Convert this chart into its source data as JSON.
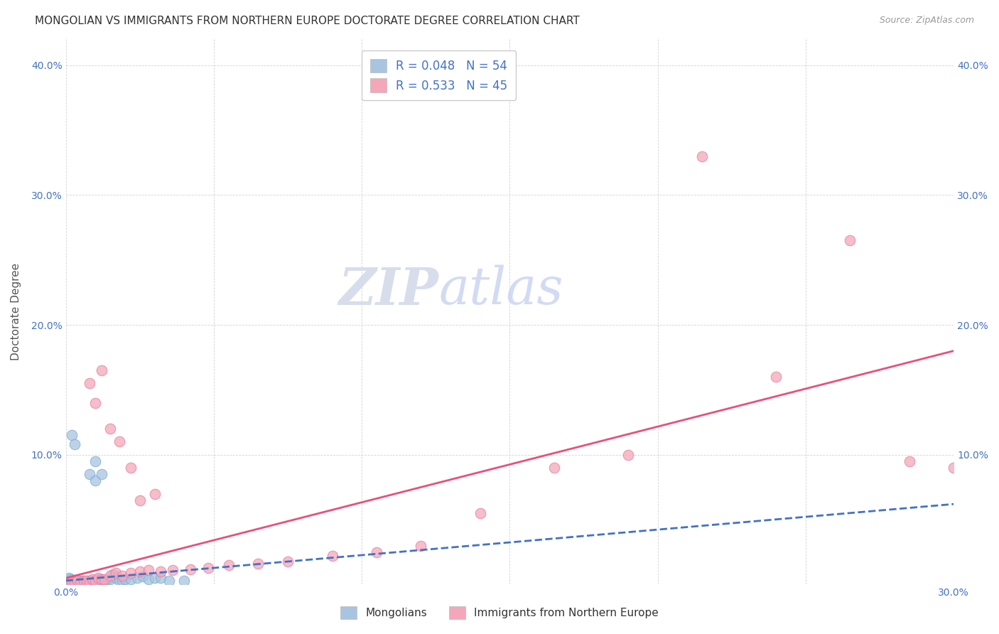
{
  "title": "MONGOLIAN VS IMMIGRANTS FROM NORTHERN EUROPE DOCTORATE DEGREE CORRELATION CHART",
  "source": "Source: ZipAtlas.com",
  "ylabel": "Doctorate Degree",
  "xlim": [
    0.0,
    0.3
  ],
  "ylim": [
    0.0,
    0.42
  ],
  "xticks": [
    0.0,
    0.05,
    0.1,
    0.15,
    0.2,
    0.25,
    0.3
  ],
  "yticks": [
    0.0,
    0.1,
    0.2,
    0.3,
    0.4
  ],
  "ytick_labels": [
    "",
    "10.0%",
    "20.0%",
    "30.0%",
    "40.0%"
  ],
  "xtick_labels": [
    "0.0%",
    "",
    "",
    "",
    "",
    "",
    "30.0%"
  ],
  "mongolian_R": 0.048,
  "mongolian_N": 54,
  "immigrant_R": 0.533,
  "immigrant_N": 45,
  "mongolian_color": "#a8c4e0",
  "mongolian_edge_color": "#7aafd4",
  "mongolian_line_color": "#4472c4",
  "immigrant_color": "#f4a7b9",
  "immigrant_edge_color": "#e87fa0",
  "immigrant_line_color": "#e8507a",
  "background_color": "#ffffff",
  "title_fontsize": 11,
  "axis_label_fontsize": 11,
  "tick_fontsize": 10,
  "legend_fontsize": 12,
  "watermark_zip_color": "#d0d8e8",
  "watermark_atlas_color": "#c8d8f0",
  "mongolian_x": [
    0.001,
    0.001,
    0.001,
    0.001,
    0.001,
    0.002,
    0.002,
    0.002,
    0.002,
    0.002,
    0.002,
    0.003,
    0.003,
    0.003,
    0.003,
    0.003,
    0.004,
    0.004,
    0.004,
    0.004,
    0.005,
    0.005,
    0.005,
    0.005,
    0.006,
    0.006,
    0.006,
    0.007,
    0.007,
    0.007,
    0.008,
    0.008,
    0.009,
    0.009,
    0.01,
    0.01,
    0.011,
    0.012,
    0.013,
    0.014,
    0.015,
    0.016,
    0.017,
    0.018,
    0.019,
    0.02,
    0.022,
    0.024,
    0.026,
    0.028,
    0.03,
    0.032,
    0.035,
    0.04
  ],
  "mongolian_y": [
    0.001,
    0.002,
    0.003,
    0.004,
    0.005,
    0.001,
    0.002,
    0.003,
    0.004,
    0.001,
    0.002,
    0.001,
    0.002,
    0.003,
    0.001,
    0.002,
    0.002,
    0.003,
    0.001,
    0.002,
    0.002,
    0.003,
    0.001,
    0.002,
    0.003,
    0.002,
    0.001,
    0.003,
    0.002,
    0.001,
    0.003,
    0.002,
    0.003,
    0.002,
    0.003,
    0.002,
    0.004,
    0.004,
    0.003,
    0.004,
    0.004,
    0.008,
    0.005,
    0.003,
    0.003,
    0.004,
    0.004,
    0.005,
    0.006,
    0.004,
    0.005,
    0.005,
    0.003,
    0.003
  ],
  "mongolian_high_x": [
    0.002,
    0.003,
    0.008,
    0.01,
    0.01,
    0.012
  ],
  "mongolian_high_y": [
    0.115,
    0.108,
    0.085,
    0.08,
    0.095,
    0.085
  ],
  "immigrant_x": [
    0.001,
    0.002,
    0.003,
    0.004,
    0.005,
    0.006,
    0.007,
    0.008,
    0.009,
    0.01,
    0.011,
    0.012,
    0.013,
    0.015,
    0.017,
    0.019,
    0.022,
    0.025,
    0.028,
    0.032,
    0.036,
    0.042,
    0.048,
    0.055,
    0.065,
    0.075,
    0.09,
    0.105,
    0.12,
    0.14,
    0.165,
    0.19,
    0.215,
    0.24,
    0.265,
    0.285,
    0.3,
    0.008,
    0.01,
    0.012,
    0.015,
    0.018,
    0.022,
    0.025,
    0.03
  ],
  "immigrant_y": [
    0.001,
    0.002,
    0.002,
    0.003,
    0.002,
    0.003,
    0.003,
    0.002,
    0.004,
    0.003,
    0.005,
    0.004,
    0.004,
    0.007,
    0.009,
    0.007,
    0.009,
    0.01,
    0.011,
    0.01,
    0.011,
    0.012,
    0.013,
    0.015,
    0.016,
    0.018,
    0.022,
    0.025,
    0.03,
    0.055,
    0.09,
    0.1,
    0.33,
    0.16,
    0.265,
    0.095,
    0.09,
    0.155,
    0.14,
    0.165,
    0.12,
    0.11,
    0.09,
    0.065,
    0.07
  ],
  "mongo_trend_x0": 0.0,
  "mongo_trend_x1": 0.3,
  "mongo_trend_y0": 0.003,
  "mongo_trend_y1": 0.062,
  "immig_trend_x0": 0.0,
  "immig_trend_x1": 0.3,
  "immig_trend_y0": 0.005,
  "immig_trend_y1": 0.18
}
